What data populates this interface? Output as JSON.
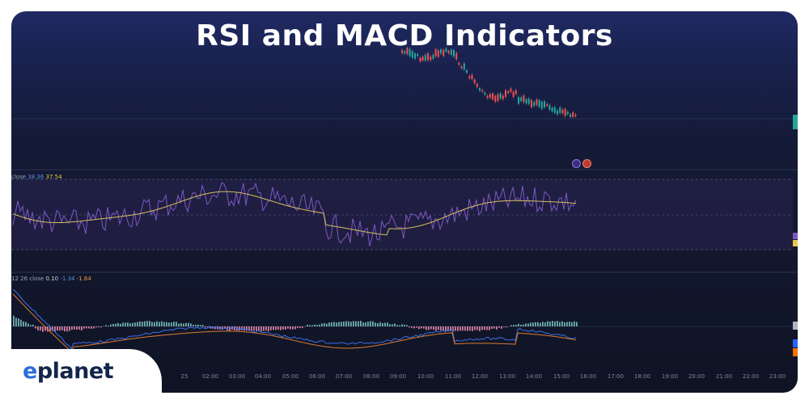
{
  "title": "RSI and MACD Indicators",
  "brand": {
    "logo_prefix": "e",
    "logo_rest": "planet"
  },
  "rsi": {
    "legend_label": "close",
    "value_1": "38.36",
    "value_2": "37.54"
  },
  "macd": {
    "legend_label": "12 26 close",
    "value_1": "0.10",
    "value_2": "-1.34",
    "value_3": "-1.64"
  },
  "time_axis": [
    "25",
    "02:00",
    "03:00",
    "04:00",
    "05:00",
    "06:00",
    "07:00",
    "08:00",
    "09:00",
    "10:00",
    "11:00",
    "12:00",
    "13:00",
    "14:00",
    "15:00",
    "16:00",
    "17:00",
    "18:00",
    "19:00",
    "20:00",
    "21:00",
    "22:00",
    "23:00"
  ],
  "colors": {
    "bull": "#26a69a",
    "bear": "#ef5350",
    "rsi_line": "#7e57c2",
    "rsi_ma": "#e8c84a",
    "macd_line": "#2962ff",
    "signal_line": "#ff6d00"
  }
}
